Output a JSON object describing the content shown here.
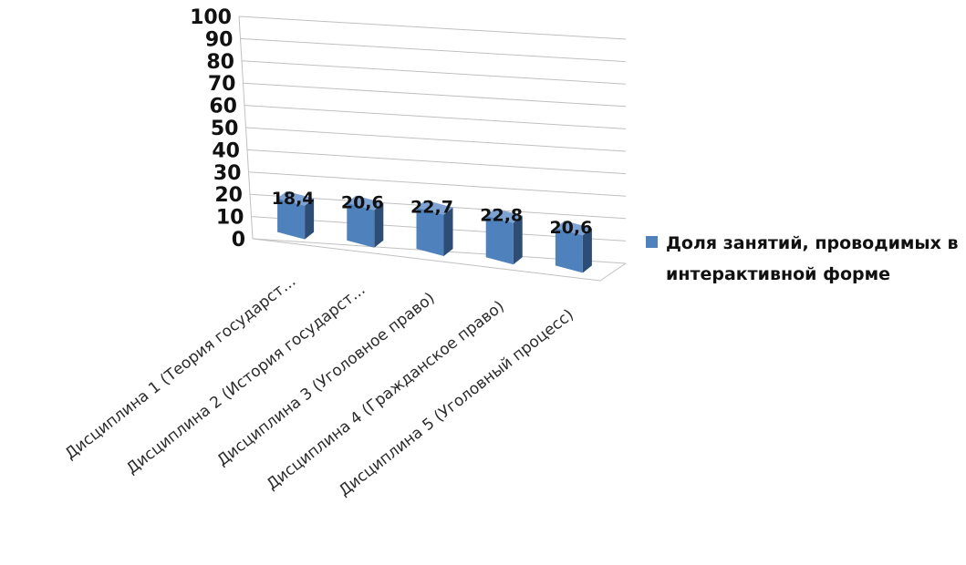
{
  "chart_data": {
    "type": "bar",
    "categories": [
      "Дисциплина 1 (Теория государст...",
      "Дисциплина 2 (История государст...",
      "Дисциплина 3 (Уголовное право)",
      "Дисциплина 4 (Гражданское право)",
      "Дисциплина 5 (Уголовный процесс)"
    ],
    "series": [
      {
        "name": "Доля занятий, проводимых в интерактивной форме",
        "values": [
          18.4,
          20.6,
          22.7,
          22.8,
          20.6
        ]
      }
    ],
    "value_labels": [
      "18,4",
      "20,6",
      "22,7",
      "22,8",
      "20,6"
    ],
    "yticks": [
      "0",
      "10",
      "20",
      "30",
      "40",
      "50",
      "60",
      "70",
      "80",
      "90",
      "100"
    ],
    "ylim": [
      0,
      100
    ],
    "grid": true,
    "three_d": true,
    "legend": {
      "position": "right",
      "lines": [
        "Доля занятий, проводимых в",
        "интерактивной форме"
      ]
    },
    "colors": {
      "bar_front": "#4f81bd",
      "bar_side": "#2d4d75",
      "bar_top": "#7da2d3",
      "grid": "#c0c0c0"
    }
  }
}
